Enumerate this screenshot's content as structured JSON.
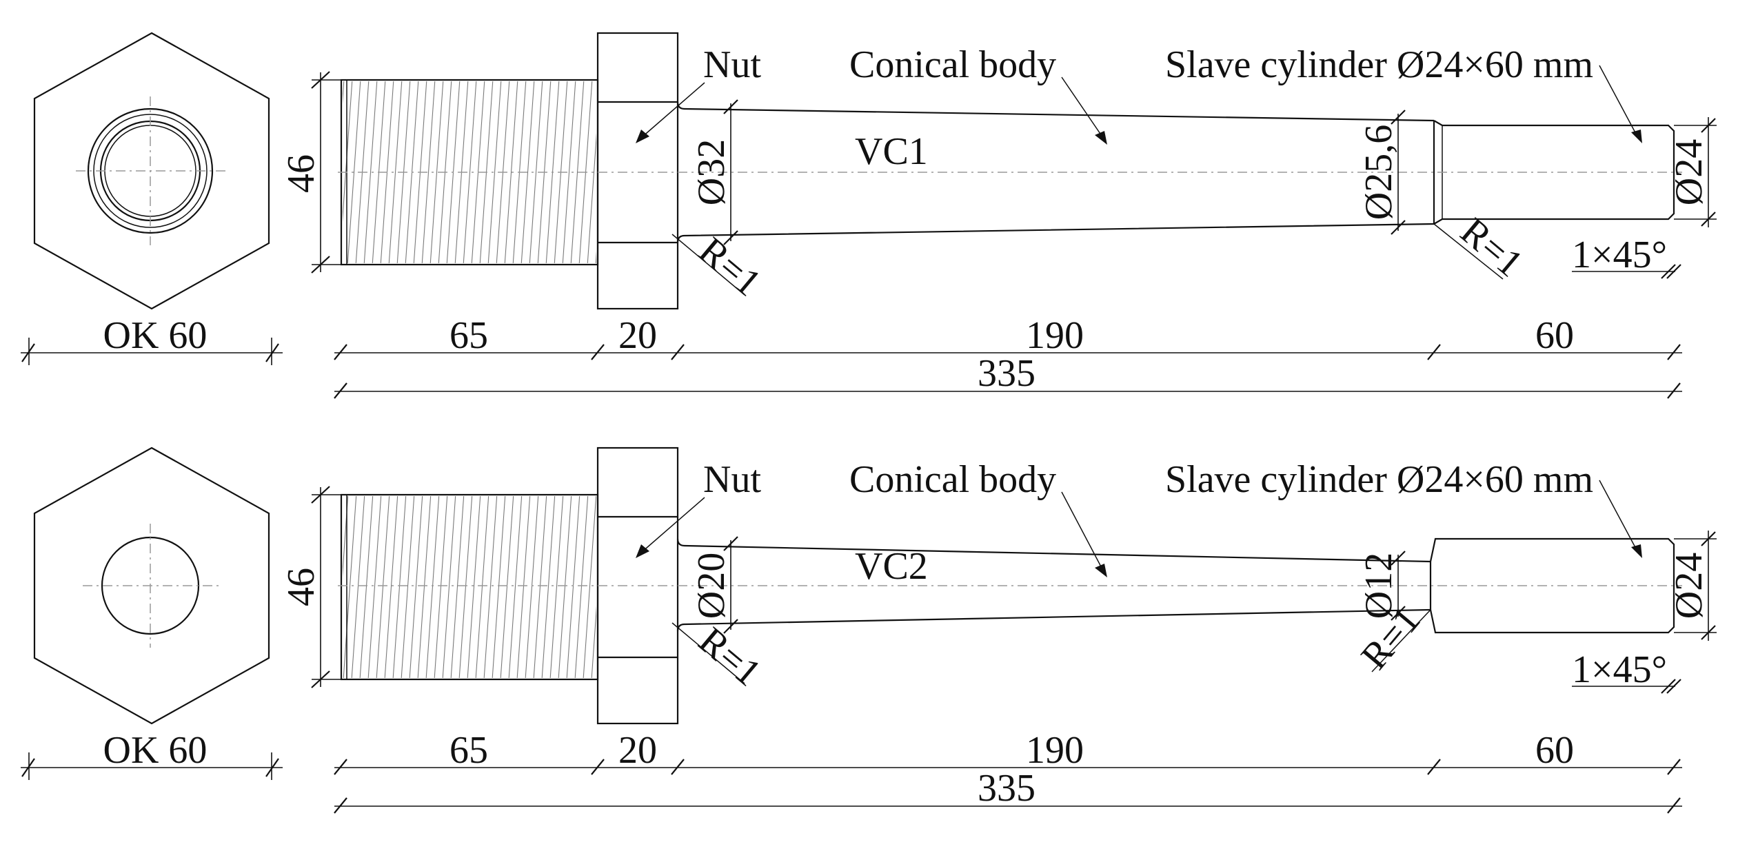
{
  "views": [
    {
      "name": "VC1",
      "nut_label": "Nut",
      "body_label": "Conical body",
      "slave_label": "Slave cylinder Ø24×60 mm",
      "hex_size_label": "OK 60",
      "thread_dia_label": "46",
      "cone_start_dia_label": "Ø32",
      "cone_end_dia_label": "Ø25,6",
      "cyl_dia_label": "Ø24",
      "radius_label_1": "R=1",
      "radius_label_2": "R=1",
      "chamfer_label": "1×45°",
      "len_thread": "65",
      "len_nut": "20",
      "len_cone": "190",
      "len_cyl": "60",
      "len_total": "335"
    },
    {
      "name": "VC2",
      "nut_label": "Nut",
      "body_label": "Conical body",
      "slave_label": "Slave cylinder Ø24×60 mm",
      "hex_size_label": "OK 60",
      "thread_dia_label": "46",
      "cone_start_dia_label": "Ø20",
      "cone_end_dia_label": "Ø12",
      "cyl_dia_label": "Ø24",
      "radius_label_1": "R=1",
      "radius_label_2": "R=1",
      "chamfer_label": "1×45°",
      "len_thread": "65",
      "len_nut": "20",
      "len_cone": "190",
      "len_cyl": "60",
      "len_total": "335"
    }
  ]
}
